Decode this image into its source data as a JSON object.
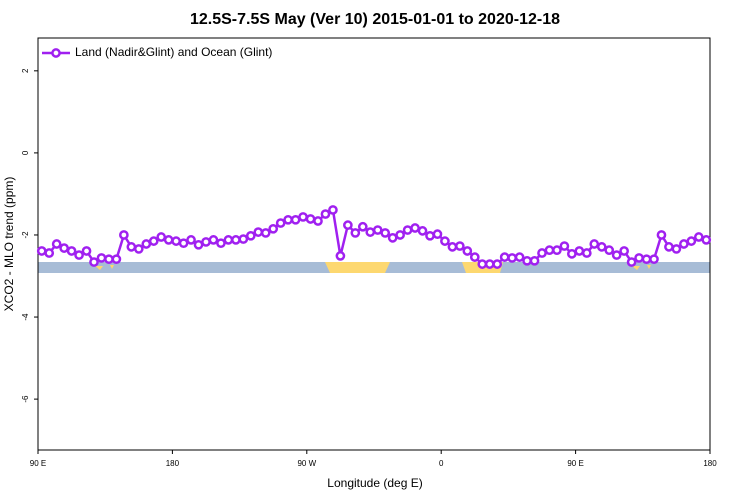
{
  "chart_data": {
    "type": "line",
    "title": "12.5S-7.5S May (Ver 10)   2015-01-01 to 2020-12-18",
    "x_label": "Longitude (deg E)",
    "y_label": "XCO2 - MLO trend (ppm)",
    "legend": "top-left",
    "xlim": [
      90,
      540
    ],
    "ylim": [
      -7.24,
      2.8
    ],
    "xticks": [
      {
        "value": 90,
        "label": "90 E"
      },
      180,
      {
        "value": 270,
        "label": "90 W"
      },
      {
        "value": 360,
        "label": "0"
      },
      {
        "value": 450,
        "label": "90 E"
      },
      {
        "value": 540,
        "label": "180"
      }
    ],
    "yticks": [
      2,
      0,
      -2,
      -4,
      -6
    ],
    "x": [
      92.5,
      97.5,
      102.5,
      107.5,
      112.5,
      117.5,
      122.5,
      127.5,
      132.5,
      137.5,
      142.5,
      147.5,
      152.5,
      157.5,
      162.5,
      167.5,
      172.5,
      177.5,
      182.5,
      187.5,
      192.5,
      197.5,
      202.5,
      207.5,
      212.5,
      217.5,
      222.5,
      227.5,
      232.5,
      237.5,
      242.5,
      247.5,
      252.5,
      257.5,
      262.5,
      267.5,
      272.5,
      277.5,
      282.5,
      287.5,
      292.5,
      297.5,
      302.5,
      307.5,
      312.5,
      317.5,
      322.5,
      327.5,
      332.5,
      337.5,
      342.5,
      347.5,
      352.5,
      357.5,
      362.5,
      367.5,
      372.5,
      377.5,
      382.5,
      387.5,
      392.5,
      397.5,
      402.5,
      407.5,
      412.5,
      417.5,
      422.5,
      427.5,
      432.5,
      437.5,
      442.5,
      447.5,
      452.5,
      457.5,
      462.5,
      467.5,
      472.5,
      477.5,
      482.5,
      487.5,
      492.5,
      497.5,
      502.5,
      507.5,
      512.5,
      517.5,
      522.5,
      527.5,
      532.5,
      537.5
    ],
    "series": [
      {
        "name": "Land (Nadir&Glint) and Ocean (Glint)",
        "color": "#a020f0",
        "values": [
          -2.39,
          -2.44,
          -2.22,
          -2.32,
          -2.39,
          -2.49,
          -2.39,
          -2.66,
          -2.56,
          -2.59,
          -2.59,
          -2.0,
          -2.29,
          -2.34,
          -2.22,
          -2.15,
          -2.05,
          -2.12,
          -2.15,
          -2.2,
          -2.12,
          -2.24,
          -2.17,
          -2.12,
          -2.2,
          -2.12,
          -2.12,
          -2.1,
          -2.02,
          -1.93,
          -1.95,
          -1.85,
          -1.71,
          -1.63,
          -1.63,
          -1.56,
          -1.61,
          -1.66,
          -1.49,
          -1.39,
          -2.51,
          -1.76,
          -1.95,
          -1.8,
          -1.93,
          -1.88,
          -1.95,
          -2.07,
          -2.0,
          -1.88,
          -1.83,
          -1.9,
          -2.02,
          -1.98,
          -2.15,
          -2.29,
          -2.27,
          -2.39,
          -2.54,
          -2.71,
          -2.71,
          -2.71,
          -2.54,
          -2.56,
          -2.54,
          -2.63,
          -2.63,
          -2.44,
          -2.37,
          -2.37,
          -2.27,
          -2.46,
          -2.39,
          -2.44,
          -2.22,
          -2.29,
          -2.37,
          -2.49,
          -2.39,
          -2.66,
          -2.56,
          -2.59,
          -2.59,
          -2.0,
          -2.29,
          -2.34,
          -2.22,
          -2.15,
          -2.05,
          -2.12
        ]
      }
    ]
  }
}
